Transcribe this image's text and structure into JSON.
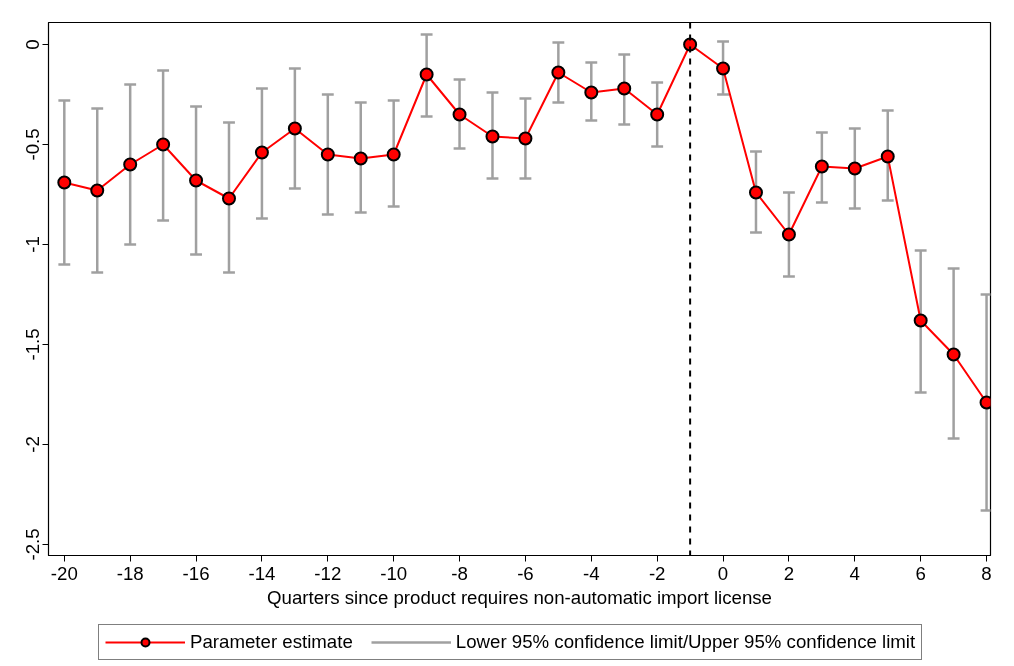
{
  "chart_data": {
    "type": "line",
    "xlabel": "Quarters since product requires non-automatic import license",
    "x": [
      -20,
      -19,
      -18,
      -17,
      -16,
      -15,
      -14,
      -13,
      -12,
      -11,
      -10,
      -9,
      -8,
      -7,
      -6,
      -5,
      -4,
      -3,
      -2,
      -1,
      0,
      1,
      2,
      3,
      4,
      5,
      6,
      7,
      8
    ],
    "series": [
      {
        "name": "Parameter estimate",
        "color": "#ff0000",
        "values": [
          -0.69,
          -0.73,
          -0.6,
          -0.5,
          -0.68,
          -0.77,
          -0.54,
          -0.42,
          -0.55,
          -0.57,
          -0.55,
          -0.15,
          -0.35,
          -0.46,
          -0.47,
          -0.14,
          -0.24,
          -0.22,
          -0.35,
          0,
          -0.12,
          -0.74,
          -0.95,
          -0.61,
          -0.62,
          -0.56,
          -1.38,
          -1.55,
          -1.79
        ],
        "errors": [
          [
            -1.1,
            -0.28
          ],
          [
            -1.14,
            -0.32
          ],
          [
            -1.0,
            -0.2
          ],
          [
            -0.88,
            -0.13
          ],
          [
            -1.05,
            -0.31
          ],
          [
            -1.14,
            -0.39
          ],
          [
            -0.87,
            -0.22
          ],
          [
            -0.72,
            -0.12
          ],
          [
            -0.85,
            -0.25
          ],
          [
            -0.84,
            -0.29
          ],
          [
            -0.81,
            -0.28
          ],
          [
            -0.36,
            0.05
          ],
          [
            -0.52,
            -0.175
          ],
          [
            -0.67,
            -0.24
          ],
          [
            -0.67,
            -0.27
          ],
          [
            -0.29,
            0.01
          ],
          [
            -0.38,
            -0.09
          ],
          [
            -0.4,
            -0.05
          ],
          [
            -0.51,
            -0.19
          ],
          null,
          [
            -0.25,
            0.015
          ],
          [
            -0.94,
            -0.535
          ],
          [
            -1.16,
            -0.74
          ],
          [
            -0.79,
            -0.44
          ],
          [
            -0.82,
            -0.42
          ],
          [
            -0.78,
            -0.33
          ],
          [
            -1.74,
            -1.03
          ],
          [
            -1.97,
            -1.12
          ],
          [
            -2.33,
            -1.25
          ]
        ]
      }
    ],
    "annotations": [
      "Lower 95% confidence limit/Upper 95% confidence limit"
    ],
    "marker": "circle",
    "line_style": "solid",
    "xlim": [
      -20.48,
      8.12
    ],
    "ylim": [
      -2.555,
      0.11
    ],
    "xticks": [
      -20,
      -18,
      -16,
      -14,
      -12,
      -10,
      -8,
      -6,
      -4,
      -2,
      0,
      2,
      4,
      6,
      8
    ],
    "yticks": [
      0,
      -0.5,
      -1,
      -1.5,
      -2,
      -2.5
    ],
    "ref_lines": [
      {
        "axis": "x",
        "value": -1,
        "color": "#000000",
        "line_style": "dashed"
      }
    ],
    "grid": false,
    "legend": "bottom"
  }
}
